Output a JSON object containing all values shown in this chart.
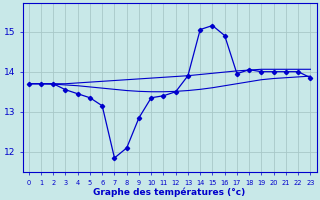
{
  "title": "Graphe des températures (°c)",
  "background_color": "#c8e8e8",
  "grid_color": "#a8c8c8",
  "line_color": "#0000cc",
  "xlim": [
    -0.5,
    23.5
  ],
  "ylim": [
    11.5,
    15.7
  ],
  "yticks": [
    12,
    13,
    14,
    15
  ],
  "hours": [
    0,
    1,
    2,
    3,
    4,
    5,
    6,
    7,
    8,
    9,
    10,
    11,
    12,
    13,
    14,
    15,
    16,
    17,
    18,
    19,
    20,
    21,
    22,
    23
  ],
  "line1": [
    13.7,
    13.7,
    13.7,
    13.55,
    13.45,
    13.35,
    13.15,
    11.85,
    12.1,
    12.85,
    13.35,
    13.4,
    13.5,
    13.9,
    15.05,
    15.15,
    14.9,
    13.95,
    14.05,
    14.0,
    14.0,
    14.0,
    14.0,
    13.85
  ],
  "line2": [
    13.7,
    13.7,
    13.7,
    13.7,
    13.72,
    13.74,
    13.76,
    13.78,
    13.8,
    13.82,
    13.84,
    13.86,
    13.88,
    13.9,
    13.93,
    13.96,
    13.99,
    14.02,
    14.04,
    14.06,
    14.06,
    14.06,
    14.06,
    14.06
  ],
  "line3": [
    13.7,
    13.7,
    13.69,
    13.67,
    13.65,
    13.62,
    13.59,
    13.56,
    13.53,
    13.51,
    13.5,
    13.5,
    13.51,
    13.53,
    13.56,
    13.6,
    13.65,
    13.7,
    13.75,
    13.8,
    13.83,
    13.85,
    13.87,
    13.89
  ]
}
